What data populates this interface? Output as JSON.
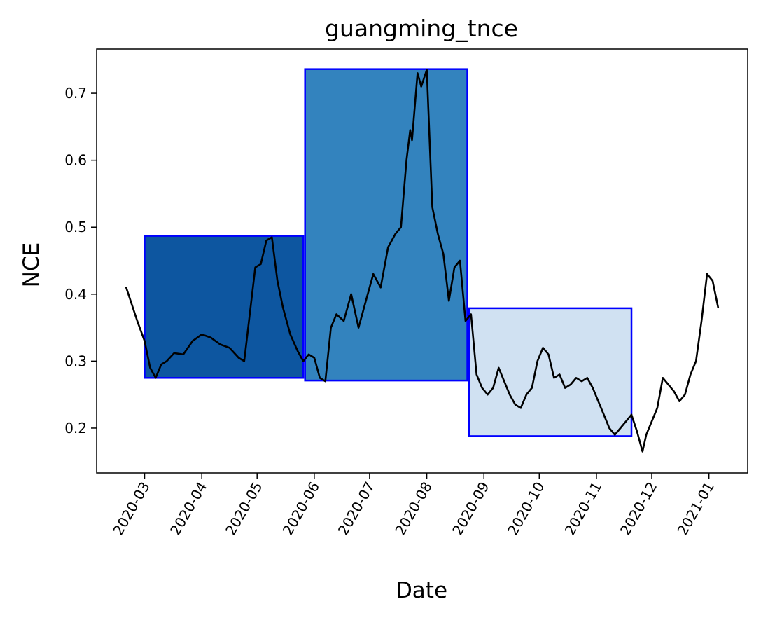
{
  "chart_data": {
    "type": "line",
    "title": "guangming_tnce",
    "xlabel": "Date",
    "ylabel": "NCE",
    "xlim": [
      "2020-02-04",
      "2021-01-22"
    ],
    "ylim": [
      0.133,
      0.766
    ],
    "x_ticks": [
      "2020-03",
      "2020-04",
      "2020-05",
      "2020-06",
      "2020-07",
      "2020-08",
      "2020-09",
      "2020-10",
      "2020-11",
      "2020-12",
      "2021-01"
    ],
    "y_ticks": [
      "0.2",
      "0.3",
      "0.4",
      "0.5",
      "0.6",
      "0.7"
    ],
    "grid": false,
    "legend": "none",
    "line_color": "#000000",
    "regions": [
      {
        "start": "2020-03-01",
        "end": "2020-05-26",
        "ymin": 0.275,
        "ymax": 0.487,
        "fill": "#0d56a0",
        "edge": "#0000ff"
      },
      {
        "start": "2020-05-27",
        "end": "2020-08-23",
        "ymin": 0.271,
        "ymax": 0.736,
        "fill": "#3383be",
        "edge": "#0000ff"
      },
      {
        "start": "2020-08-24",
        "end": "2020-11-20",
        "ymin": 0.188,
        "ymax": 0.379,
        "fill": "#d0e1f2",
        "edge": "#0000ff"
      }
    ],
    "series": [
      {
        "x": [
          "2020-02-20",
          "2020-02-23",
          "2020-02-26",
          "2020-03-01",
          "2020-03-04",
          "2020-03-07",
          "2020-03-10",
          "2020-03-13",
          "2020-03-17",
          "2020-03-22",
          "2020-03-27",
          "2020-04-01",
          "2020-04-06",
          "2020-04-11",
          "2020-04-16",
          "2020-04-21",
          "2020-04-24",
          "2020-04-27",
          "2020-04-30",
          "2020-05-03",
          "2020-05-06",
          "2020-05-09",
          "2020-05-12",
          "2020-05-15",
          "2020-05-19",
          "2020-05-23",
          "2020-05-26",
          "2020-05-29",
          "2020-06-01",
          "2020-06-04",
          "2020-06-07",
          "2020-06-10",
          "2020-06-13",
          "2020-06-17",
          "2020-06-21",
          "2020-06-25",
          "2020-06-29",
          "2020-07-03",
          "2020-07-07",
          "2020-07-11",
          "2020-07-15",
          "2020-07-18",
          "2020-07-21",
          "2020-07-23",
          "2020-07-24",
          "2020-07-27",
          "2020-07-29",
          "2020-08-01",
          "2020-08-04",
          "2020-08-07",
          "2020-08-10",
          "2020-08-13",
          "2020-08-16",
          "2020-08-19",
          "2020-08-22",
          "2020-08-25",
          "2020-08-28",
          "2020-08-31",
          "2020-09-03",
          "2020-09-06",
          "2020-09-09",
          "2020-09-12",
          "2020-09-15",
          "2020-09-18",
          "2020-09-21",
          "2020-09-24",
          "2020-09-27",
          "2020-09-30",
          "2020-10-03",
          "2020-10-06",
          "2020-10-09",
          "2020-10-12",
          "2020-10-15",
          "2020-10-18",
          "2020-10-21",
          "2020-10-24",
          "2020-10-27",
          "2020-10-30",
          "2020-11-02",
          "2020-11-05",
          "2020-11-08",
          "2020-11-11",
          "2020-11-14",
          "2020-11-17",
          "2020-11-20",
          "2020-11-23",
          "2020-11-26",
          "2020-11-28",
          "2020-12-01",
          "2020-12-04",
          "2020-12-07",
          "2020-12-10",
          "2020-12-13",
          "2020-12-16",
          "2020-12-19",
          "2020-12-22",
          "2020-12-25",
          "2020-12-28",
          "2020-12-31",
          "2021-01-03",
          "2021-01-06"
        ],
        "y": [
          0.41,
          0.385,
          0.36,
          0.33,
          0.29,
          0.275,
          0.295,
          0.3,
          0.312,
          0.31,
          0.33,
          0.34,
          0.335,
          0.325,
          0.32,
          0.305,
          0.3,
          0.37,
          0.44,
          0.445,
          0.48,
          0.485,
          0.42,
          0.38,
          0.34,
          0.315,
          0.3,
          0.31,
          0.305,
          0.275,
          0.27,
          0.35,
          0.37,
          0.36,
          0.4,
          0.35,
          0.39,
          0.43,
          0.41,
          0.47,
          0.49,
          0.5,
          0.6,
          0.645,
          0.63,
          0.73,
          0.71,
          0.735,
          0.53,
          0.49,
          0.46,
          0.39,
          0.44,
          0.45,
          0.36,
          0.37,
          0.28,
          0.26,
          0.25,
          0.26,
          0.29,
          0.27,
          0.25,
          0.235,
          0.23,
          0.25,
          0.26,
          0.3,
          0.32,
          0.31,
          0.275,
          0.28,
          0.26,
          0.265,
          0.275,
          0.27,
          0.275,
          0.26,
          0.24,
          0.22,
          0.2,
          0.19,
          0.2,
          0.21,
          0.22,
          0.195,
          0.165,
          0.19,
          0.21,
          0.23,
          0.275,
          0.265,
          0.255,
          0.24,
          0.25,
          0.28,
          0.3,
          0.36,
          0.43,
          0.42,
          0.38
        ]
      }
    ]
  }
}
